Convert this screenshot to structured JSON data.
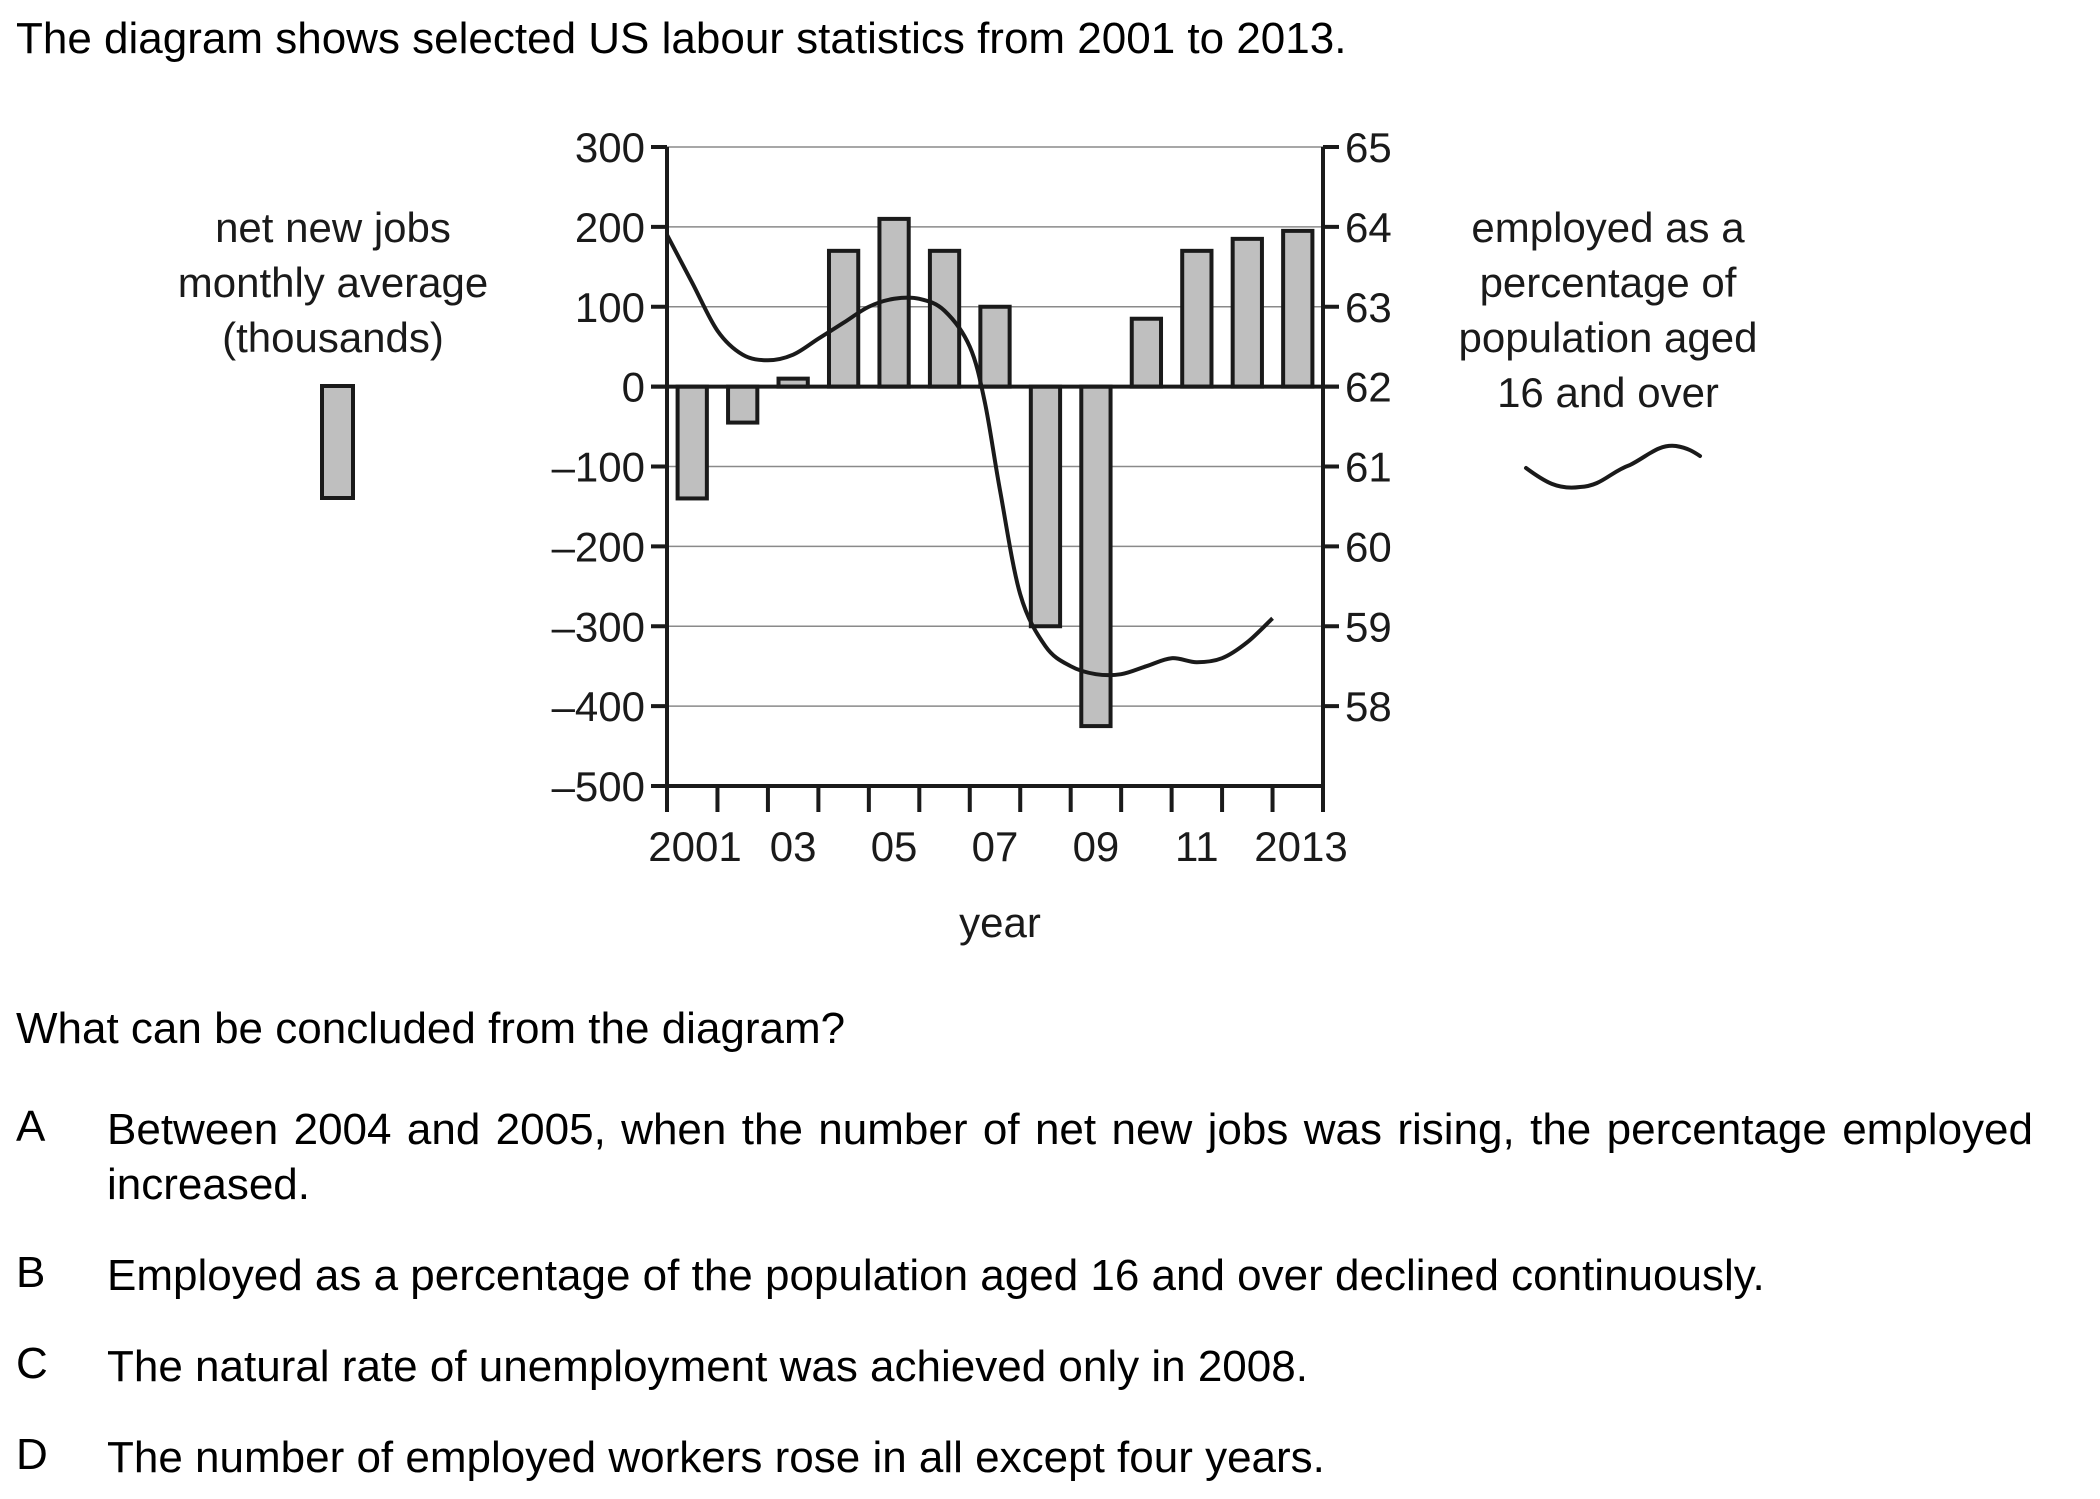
{
  "intro": "The diagram shows selected US labour statistics from 2001 to 2013.",
  "chart_data": {
    "type": "bar+line",
    "x_years": [
      2001,
      2002,
      2003,
      2004,
      2005,
      2006,
      2007,
      2008,
      2009,
      2010,
      2011,
      2012,
      2013
    ],
    "xtick_labels": [
      {
        "year": 2001,
        "label": "2001"
      },
      {
        "year": 2003,
        "label": "03"
      },
      {
        "year": 2005,
        "label": "05"
      },
      {
        "year": 2007,
        "label": "07"
      },
      {
        "year": 2009,
        "label": "09"
      },
      {
        "year": 2011,
        "label": "11"
      },
      {
        "year": 2013,
        "label": "2013"
      }
    ],
    "xlabel": "year",
    "left_axis": {
      "label_lines": [
        "net new jobs",
        "monthly average",
        "(thousands)"
      ],
      "ylim": [
        -500,
        300
      ],
      "ticks": [
        300,
        200,
        100,
        0,
        -100,
        -200,
        -300,
        -400,
        -500
      ],
      "tick_labels": [
        "300",
        "200",
        "100",
        "0",
        "–100",
        "–200",
        "–300",
        "–400",
        "–500"
      ]
    },
    "right_axis": {
      "label_lines": [
        "employed as a",
        "percentage of",
        "population aged",
        "16 and over"
      ],
      "ylim": [
        57,
        65
      ],
      "ticks": [
        65,
        64,
        63,
        62,
        61,
        60,
        59,
        58
      ],
      "tick_labels": [
        "65",
        "64",
        "63",
        "62",
        "61",
        "60",
        "59",
        "58"
      ]
    },
    "bars": {
      "series_axis": "left",
      "values": [
        -140,
        -45,
        10,
        170,
        210,
        170,
        100,
        -300,
        -425,
        85,
        170,
        185,
        195
      ],
      "fill": "#bfbfbf",
      "stroke": "#1a1a1a"
    },
    "line": {
      "series_axis": "right",
      "points": [
        [
          2001.0,
          63.9
        ],
        [
          2001.5,
          63.3
        ],
        [
          2002.0,
          62.7
        ],
        [
          2002.5,
          62.4
        ],
        [
          2003.0,
          62.33
        ],
        [
          2003.5,
          62.4
        ],
        [
          2004.0,
          62.6
        ],
        [
          2004.5,
          62.8
        ],
        [
          2005.0,
          63.0
        ],
        [
          2005.5,
          63.1
        ],
        [
          2006.0,
          63.1
        ],
        [
          2006.5,
          62.95
        ],
        [
          2007.0,
          62.5
        ],
        [
          2007.3,
          61.8
        ],
        [
          2007.6,
          60.7
        ],
        [
          2008.0,
          59.4
        ],
        [
          2008.5,
          58.75
        ],
        [
          2009.0,
          58.5
        ],
        [
          2009.5,
          58.4
        ],
        [
          2010.0,
          58.4
        ],
        [
          2010.5,
          58.5
        ],
        [
          2011.0,
          58.6
        ],
        [
          2011.5,
          58.55
        ],
        [
          2012.0,
          58.6
        ],
        [
          2012.5,
          58.8
        ],
        [
          2013.0,
          59.1
        ]
      ]
    },
    "legend": {
      "position": "sides",
      "bar_swatch_side": "left",
      "line_swatch_side": "right"
    },
    "grid": "horizontal"
  },
  "question": "What can be concluded from the diagram?",
  "options": [
    {
      "letter": "A",
      "text": "Between 2004 and 2005, when the number of net new jobs was rising, the percentage employed increased."
    },
    {
      "letter": "B",
      "text": "Employed as a percentage of the population aged 16 and over declined continuously."
    },
    {
      "letter": "C",
      "text": "The natural rate of unemployment was achieved only in 2008."
    },
    {
      "letter": "D",
      "text": "The number of employed workers rose in all except four years."
    }
  ]
}
